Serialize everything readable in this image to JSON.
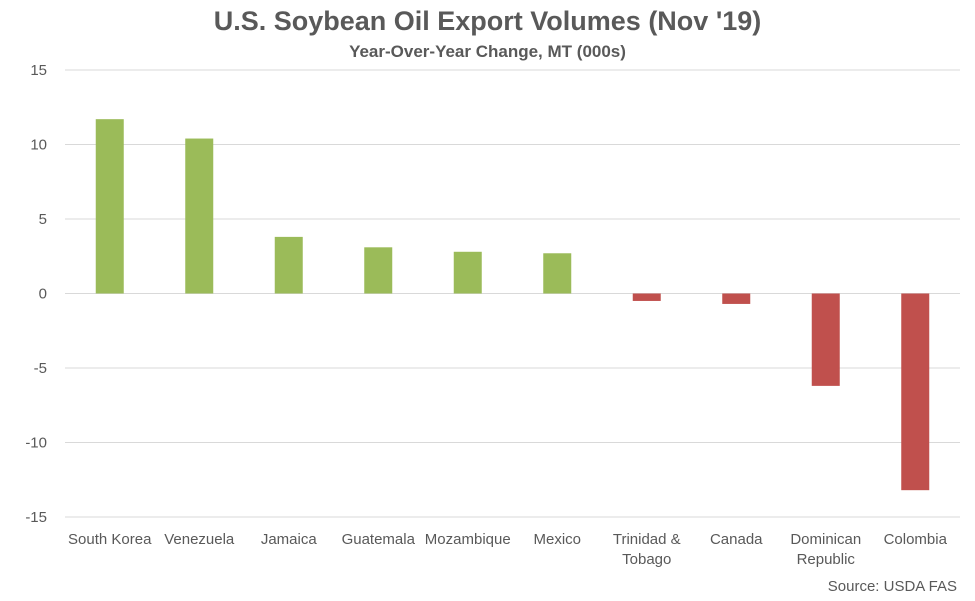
{
  "chart_data": {
    "type": "bar",
    "title": "U.S. Soybean Oil Export Volumes (Nov '19)",
    "subtitle": "Year-Over-Year Change, MT (000s)",
    "source": "Source: USDA FAS",
    "categories": [
      "South Korea",
      "Venezuela",
      "Jamaica",
      "Guatemala",
      "Mozambique",
      "Mexico",
      "Trinidad & Tobago",
      "Canada",
      "Dominican Republic",
      "Colombia"
    ],
    "category_lines": [
      [
        "South Korea"
      ],
      [
        "Venezuela"
      ],
      [
        "Jamaica"
      ],
      [
        "Guatemala"
      ],
      [
        "Mozambique"
      ],
      [
        "Mexico"
      ],
      [
        "Trinidad &",
        "Tobago"
      ],
      [
        "Canada"
      ],
      [
        "Dominican",
        "Republic"
      ],
      [
        "Colombia"
      ]
    ],
    "values": [
      11.7,
      10.4,
      3.8,
      3.1,
      2.8,
      2.7,
      -0.5,
      -0.7,
      -6.2,
      -13.2
    ],
    "ylim": [
      -15,
      15
    ],
    "yticks": [
      15,
      10,
      5,
      0,
      -5,
      -10,
      -15
    ],
    "grid": true,
    "legend": "none",
    "colors": {
      "positive": "#9BBB59",
      "negative": "#C0504D",
      "grid": "#D9D9D9",
      "text": "#595959"
    }
  }
}
